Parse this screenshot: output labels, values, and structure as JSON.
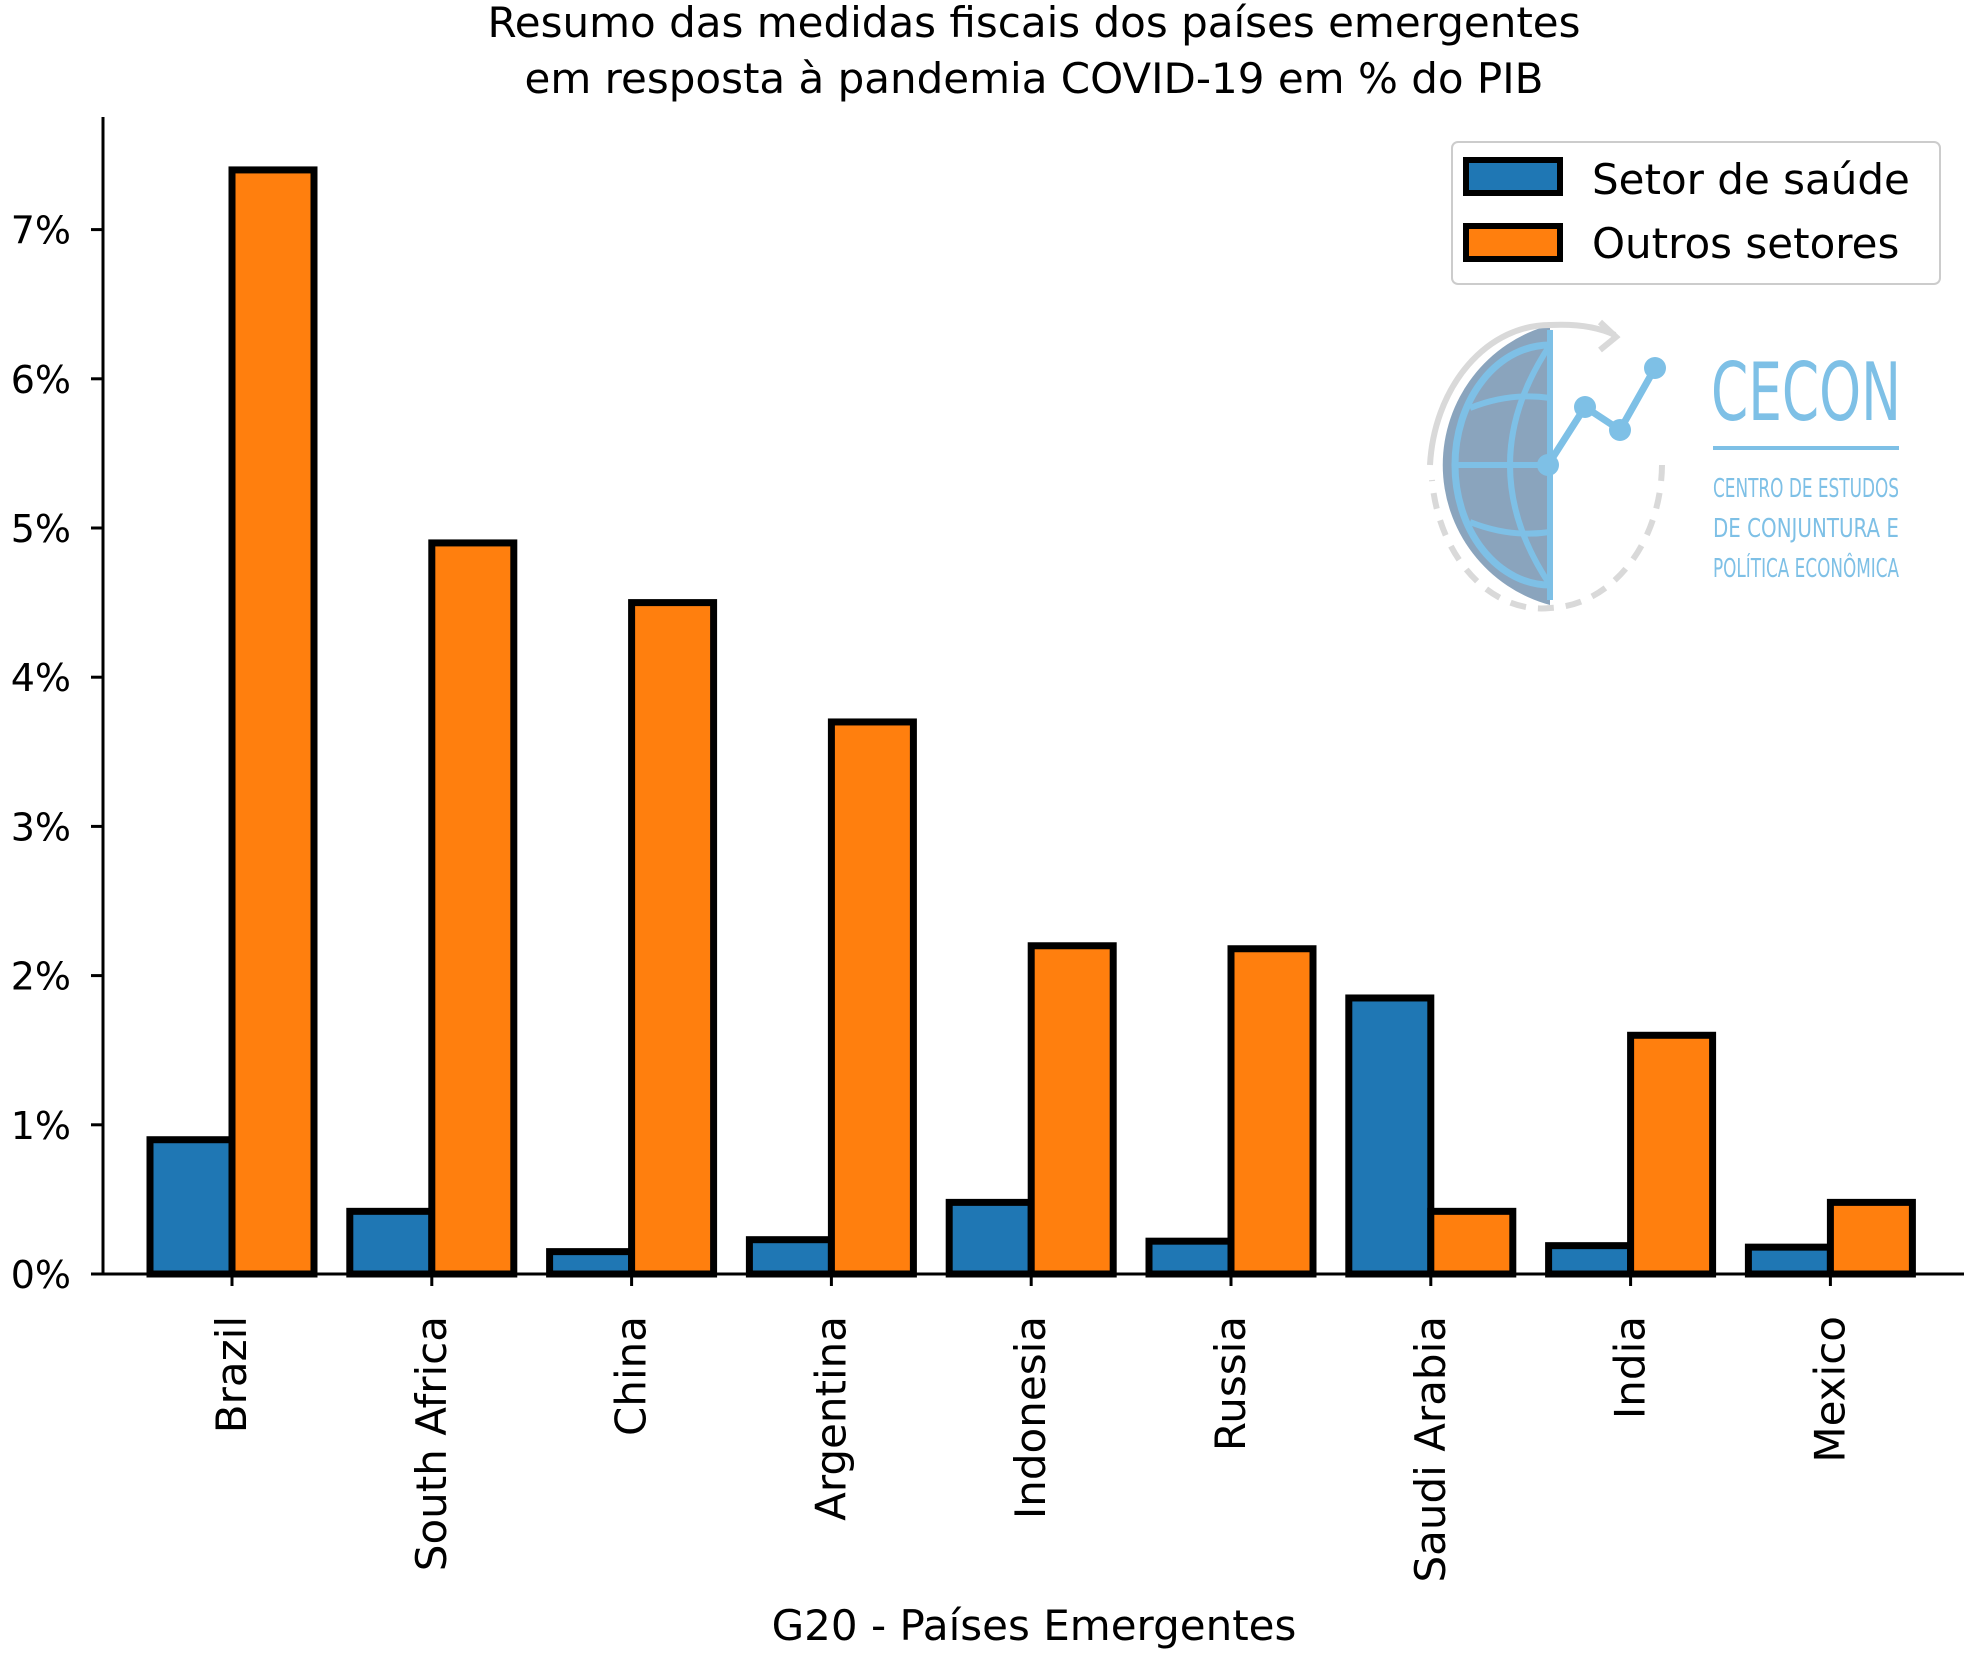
{
  "chart_data": {
    "type": "bar",
    "title_line1": "Resumo das medidas fiscais dos países emergentes",
    "title_line2": "em resposta à pandemia COVID-19 em % do PIB",
    "xlabel": "G20 - Países Emergentes",
    "ylabel": "",
    "ylim": [
      0,
      8
    ],
    "yticks": [
      "0%",
      "1%",
      "2%",
      "3%",
      "4%",
      "5%",
      "6%",
      "7%"
    ],
    "categories": [
      "Brazil",
      "South Africa",
      "China",
      "Argentina",
      "Indonesia",
      "Russia",
      "Saudi Arabia",
      "India",
      "Mexico"
    ],
    "series": [
      {
        "name": "Setor de saúde",
        "color": "#1f77b4",
        "values": [
          0.9,
          0.42,
          0.15,
          0.23,
          0.48,
          0.22,
          1.85,
          0.19,
          0.18
        ]
      },
      {
        "name": "Outros setores",
        "color": "#ff7f0e",
        "values": [
          7.4,
          4.9,
          4.5,
          3.7,
          2.2,
          2.18,
          0.42,
          1.6,
          0.48
        ]
      }
    ],
    "grid": false,
    "legend_position": "top-right"
  },
  "logo": {
    "name": "CECON",
    "line1": "CENTRO DE ESTUDOS",
    "line2": "DE CONJUNTURA E",
    "line3": "POLÍTICA ECONÔMICA"
  }
}
